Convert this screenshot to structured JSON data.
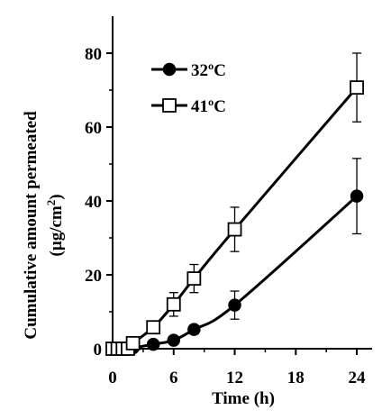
{
  "chart_data": {
    "type": "line",
    "title": "",
    "xlabel": "Time (h)",
    "ylabel_line1": "Cumulative amount permeated",
    "ylabel_line2_prefix": "(µg/cm",
    "ylabel_line2_sup": "2",
    "ylabel_line2_suffix": ")",
    "xlim": [
      0,
      25.5
    ],
    "ylim": [
      0,
      90
    ],
    "xticks": [
      0,
      6,
      12,
      18,
      24
    ],
    "yticks": [
      0,
      20,
      40,
      60,
      80
    ],
    "minor_xticks": [
      3,
      9,
      15,
      21
    ],
    "minor_yticks": [
      10,
      30,
      50,
      70
    ],
    "grid": false,
    "legend_position": "top-left",
    "series": [
      {
        "name": "32ºC",
        "marker": "filled-circle",
        "color": "#000000",
        "x": [
          0,
          0.5,
          1,
          1.5,
          2,
          4,
          6,
          8,
          12,
          24
        ],
        "y": [
          0,
          0,
          0,
          0,
          0.2,
          1.2,
          2.3,
          5.2,
          11.8,
          41.3
        ],
        "error": [
          0,
          0,
          0,
          0,
          0.3,
          0.5,
          0.6,
          1.2,
          3.8,
          10.2
        ]
      },
      {
        "name": "41ºC",
        "marker": "open-square",
        "color": "#000000",
        "x": [
          0,
          0.5,
          1,
          1.5,
          2,
          4,
          6,
          8,
          12,
          24
        ],
        "y": [
          0,
          0,
          0,
          0,
          1.5,
          5.8,
          12,
          19,
          32.3,
          70.7
        ],
        "error": [
          0,
          0,
          0,
          0,
          0.5,
          1.0,
          3.2,
          3.8,
          6.0,
          9.3
        ]
      }
    ]
  }
}
